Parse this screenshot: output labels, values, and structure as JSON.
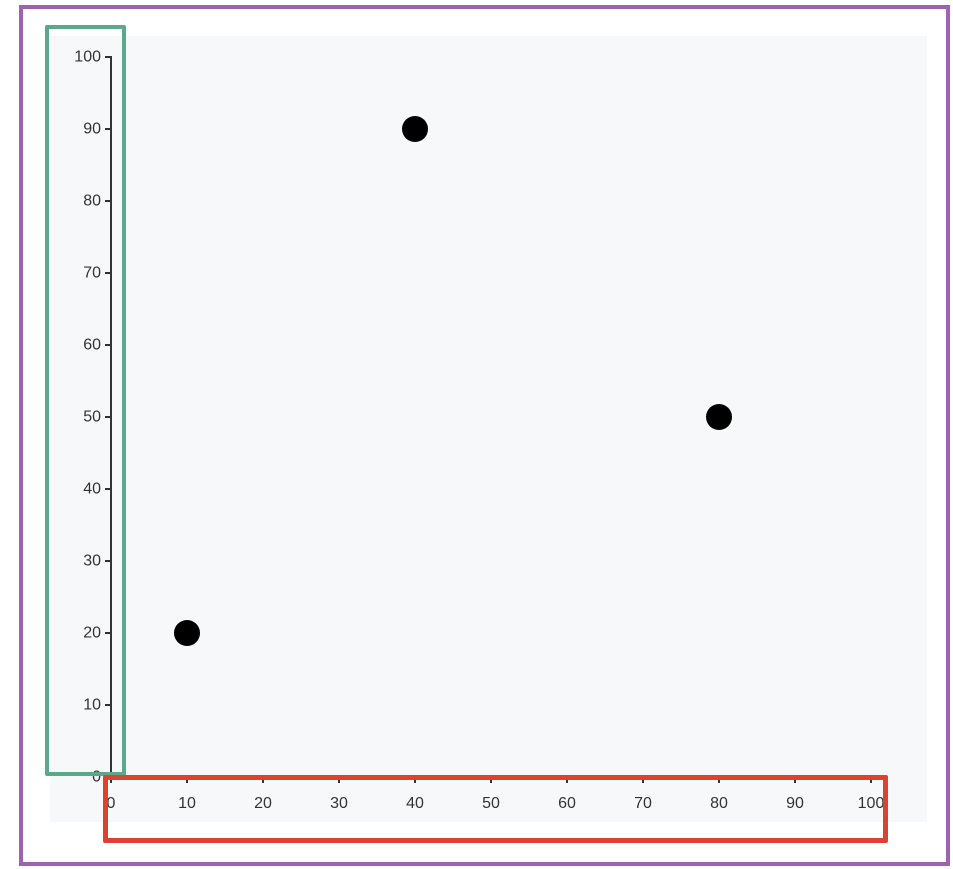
{
  "chart_data": {
    "type": "scatter",
    "title": "",
    "xlabel": "",
    "ylabel": "",
    "xlim": [
      0,
      100
    ],
    "ylim": [
      0,
      100
    ],
    "x_ticks": [
      "0",
      "10",
      "20",
      "30",
      "40",
      "50",
      "60",
      "70",
      "80",
      "90",
      "100"
    ],
    "y_ticks": [
      "0",
      "10",
      "20",
      "30",
      "40",
      "50",
      "60",
      "70",
      "80",
      "90",
      "100"
    ],
    "points": [
      {
        "x": 10,
        "y": 20
      },
      {
        "x": 40,
        "y": 90
      },
      {
        "x": 80,
        "y": 50
      }
    ],
    "point_color": "#000000",
    "grid": false,
    "background_color": "#f7f8fa",
    "highlight_colors": {
      "outer": "#9d63b0",
      "y_axis": "#5aa98a",
      "x_axis": "#d94330"
    }
  }
}
